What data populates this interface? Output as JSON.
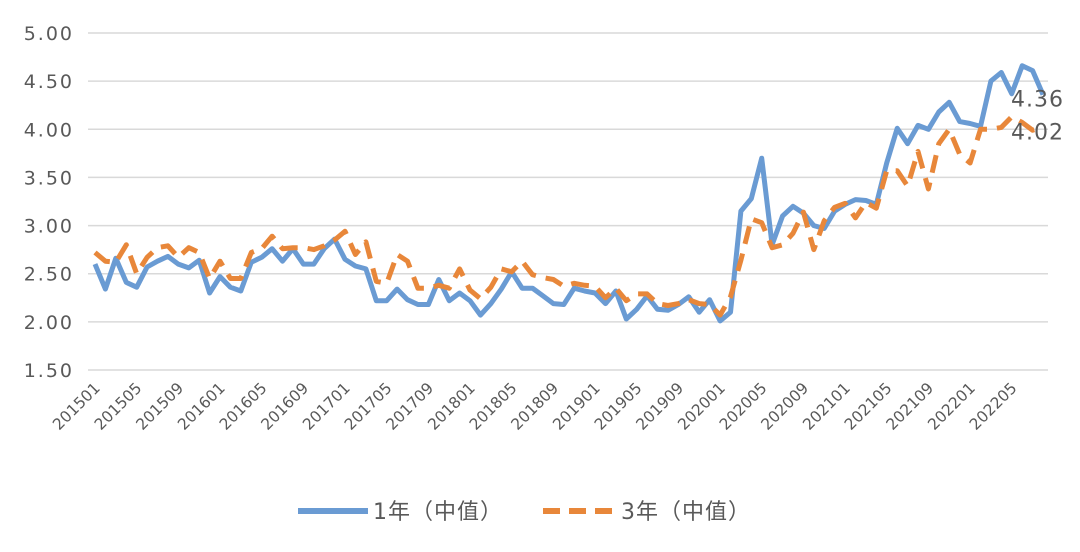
{
  "chart_data": {
    "type": "line",
    "title": "",
    "xlabel": "",
    "ylabel": "",
    "ylim": [
      1.5,
      5.0
    ],
    "y_ticks": [
      "1.50",
      "2.00",
      "2.50",
      "3.00",
      "3.50",
      "4.00",
      "4.50",
      "5.00"
    ],
    "grid": "horizontal",
    "legend_position": "bottom",
    "x_tick_labels": [
      "201501",
      "201505",
      "201509",
      "201601",
      "201605",
      "201609",
      "201701",
      "201705",
      "201709",
      "201801",
      "201805",
      "201809",
      "201901",
      "201905",
      "201909",
      "202001",
      "202005",
      "202009",
      "202101",
      "202105",
      "202109",
      "202201",
      "202205"
    ],
    "end_labels": [
      "4.36",
      "4.02"
    ],
    "series": [
      {
        "name": "1年（中值）",
        "color": "#6a9bd3",
        "style": "solid",
        "values": [
          2.6,
          2.34,
          2.66,
          2.41,
          2.36,
          2.57,
          2.63,
          2.68,
          2.6,
          2.56,
          2.64,
          2.3,
          2.47,
          2.36,
          2.32,
          2.62,
          2.67,
          2.76,
          2.63,
          2.76,
          2.6,
          2.6,
          2.76,
          2.86,
          2.65,
          2.58,
          2.55,
          2.22,
          2.22,
          2.34,
          2.23,
          2.18,
          2.18,
          2.44,
          2.22,
          2.3,
          2.22,
          2.07,
          2.19,
          2.34,
          2.52,
          2.35,
          2.35,
          2.27,
          2.19,
          2.18,
          2.35,
          2.32,
          2.3,
          2.19,
          2.32,
          2.03,
          2.13,
          2.27,
          2.13,
          2.12,
          2.18,
          2.26,
          2.1,
          2.23,
          2.01,
          2.1,
          3.15,
          3.28,
          3.7,
          2.8,
          3.1,
          3.2,
          3.13,
          3.0,
          2.97,
          3.15,
          3.22,
          3.27,
          3.26,
          3.22,
          3.65,
          4.01,
          3.85,
          4.04,
          4.0,
          4.18,
          4.28,
          4.08,
          4.06,
          4.03,
          4.5,
          4.59,
          4.37,
          4.66,
          4.61,
          4.36
        ]
      },
      {
        "name": "3年（中值）",
        "color": "#e8873a",
        "style": "dashed",
        "values": [
          2.72,
          2.63,
          2.62,
          2.8,
          2.5,
          2.67,
          2.77,
          2.79,
          2.67,
          2.77,
          2.72,
          2.45,
          2.63,
          2.45,
          2.45,
          2.72,
          2.76,
          2.89,
          2.76,
          2.77,
          2.77,
          2.75,
          2.79,
          2.85,
          2.94,
          2.7,
          2.83,
          2.42,
          2.4,
          2.7,
          2.63,
          2.35,
          2.35,
          2.38,
          2.35,
          2.55,
          2.33,
          2.24,
          2.36,
          2.55,
          2.52,
          2.63,
          2.49,
          2.46,
          2.44,
          2.37,
          2.4,
          2.38,
          2.37,
          2.25,
          2.35,
          2.22,
          2.29,
          2.29,
          2.19,
          2.17,
          2.19,
          2.23,
          2.19,
          2.18,
          2.07,
          2.26,
          2.64,
          3.07,
          3.03,
          2.77,
          2.8,
          2.92,
          3.14,
          2.75,
          3.05,
          3.19,
          3.23,
          3.08,
          3.24,
          3.18,
          3.57,
          3.57,
          3.41,
          3.77,
          3.38,
          3.85,
          4.0,
          3.74,
          3.65,
          4.0,
          4.0,
          4.02,
          4.13,
          4.07,
          3.99,
          4.02
        ]
      }
    ]
  }
}
